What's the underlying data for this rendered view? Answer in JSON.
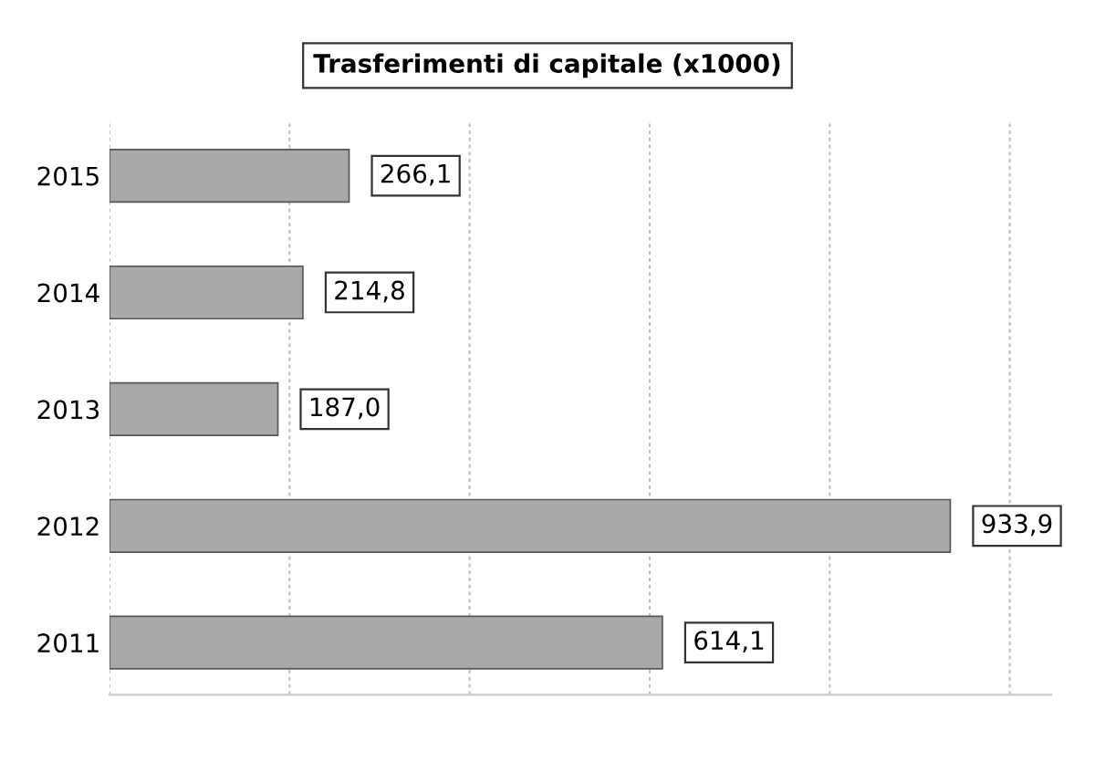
{
  "chart_data": {
    "type": "bar",
    "orientation": "horizontal",
    "title": "Trasferimenti di capitale (x1000)",
    "categories": [
      "2015",
      "2014",
      "2013",
      "2012",
      "2011"
    ],
    "values": [
      266.1,
      214.8,
      187.0,
      933.9,
      614.1
    ],
    "value_labels": [
      "266,1",
      "214,8",
      "187,0",
      "933,9",
      "614,1"
    ],
    "color": "#a9a9a9",
    "grid": "x",
    "tick_labels": "y",
    "legend": false
  }
}
